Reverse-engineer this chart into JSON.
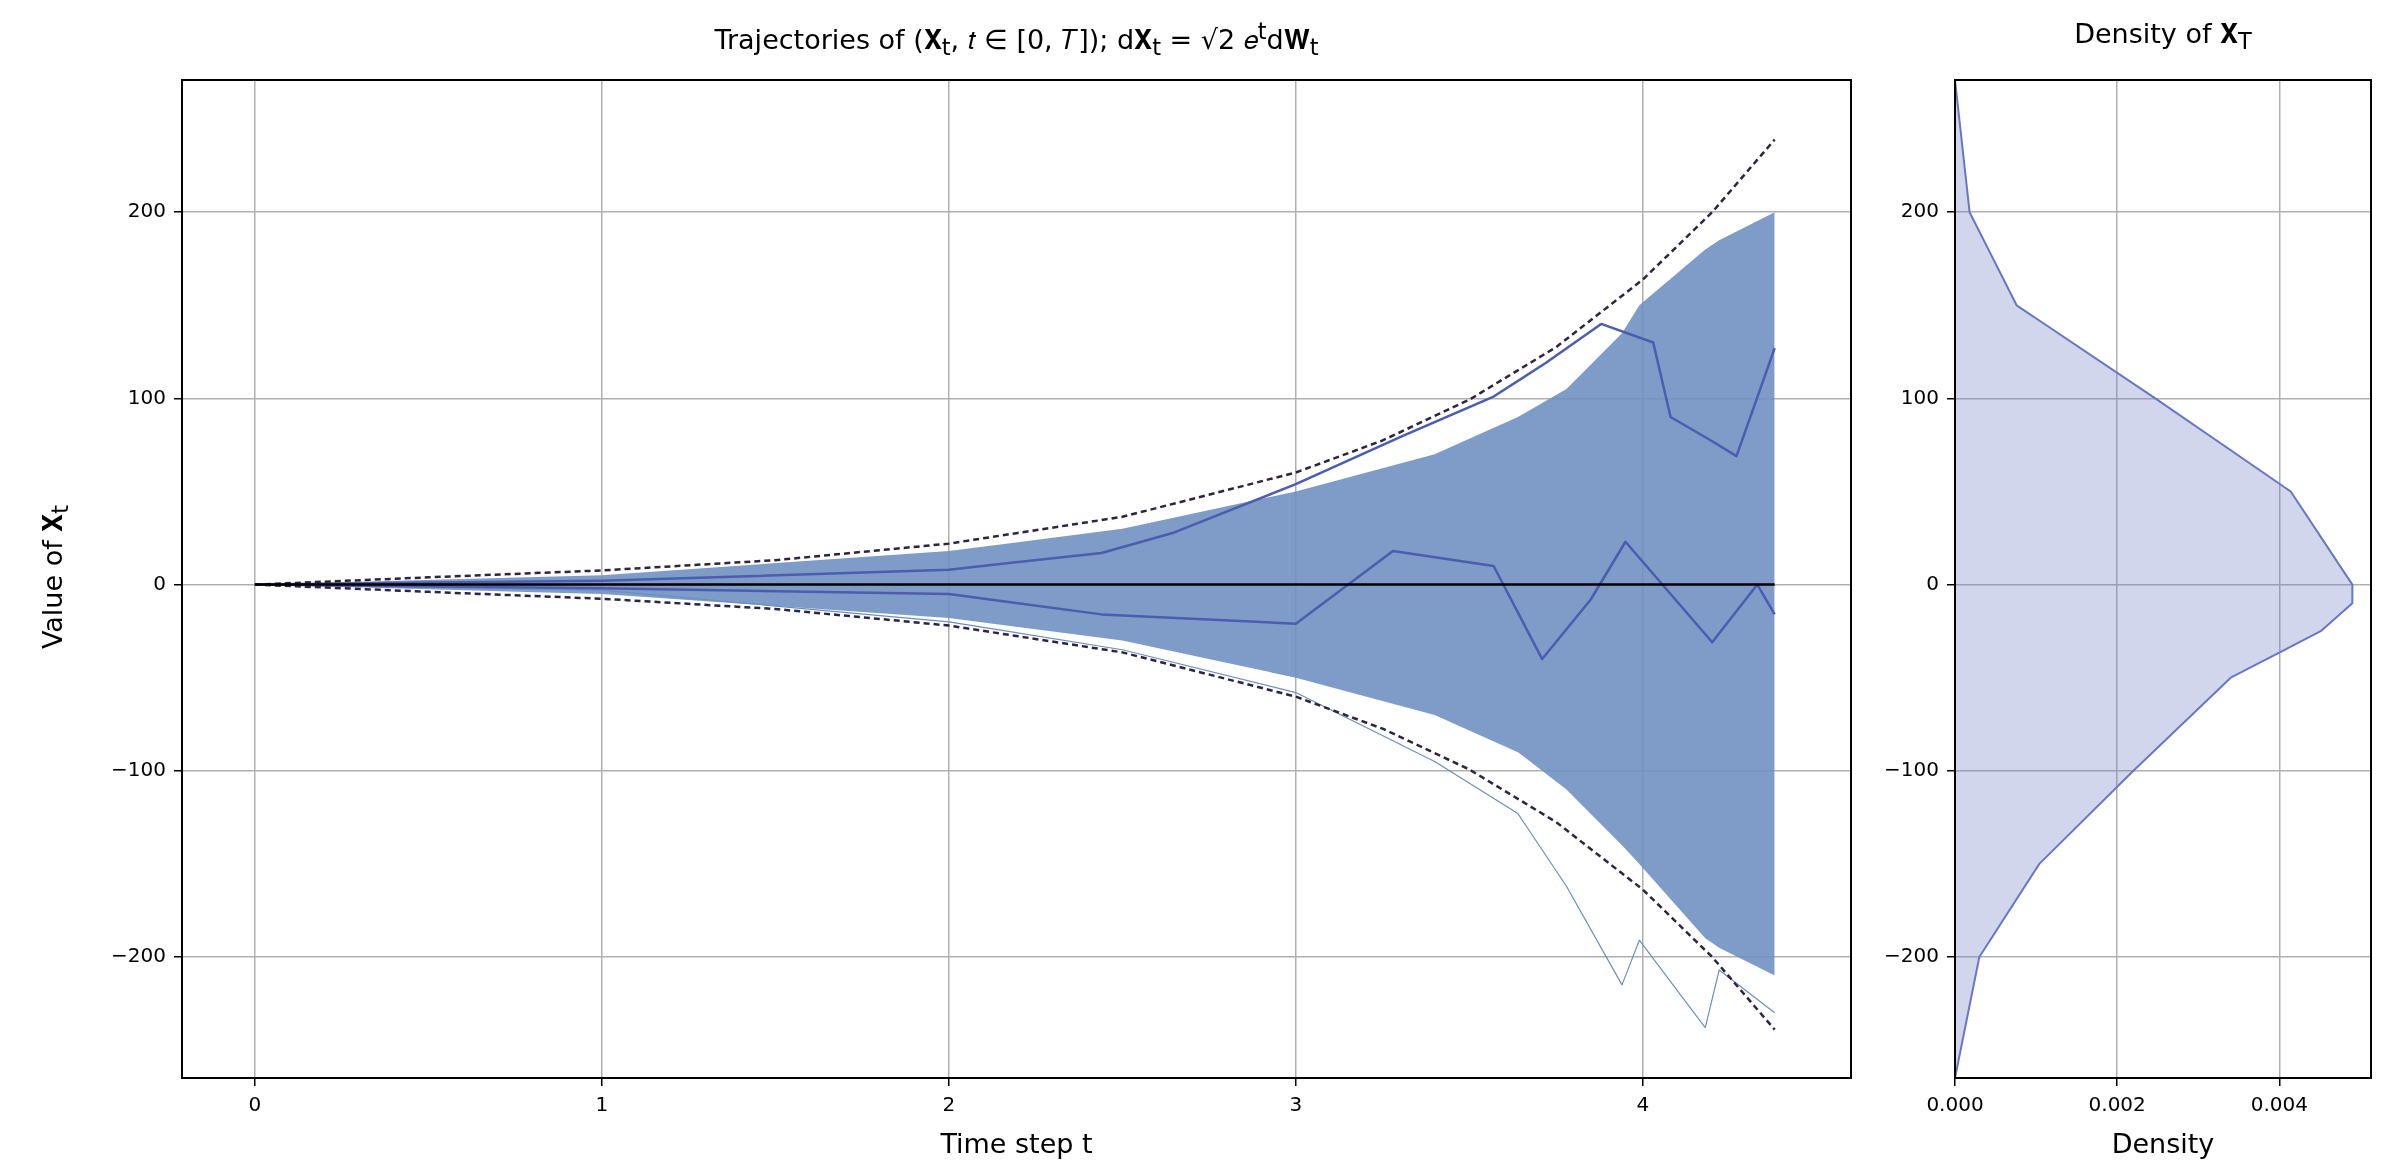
{
  "chart_data": [
    {
      "type": "line",
      "title": "Trajectories of (𝐗$_{t}$, 𝑡 ∈ [0, 𝑇]); d𝐗$_{t}$ = √2 𝑒$^{t}$d𝐖$_{t}$",
      "xlabel": "Time step t",
      "ylabel": "Value of 𝐗$_{t}$",
      "xlim": [
        -0.21,
        4.6
      ],
      "ylim": [
        -265,
        271
      ],
      "xticks": [
        0,
        1,
        2,
        3,
        4
      ],
      "yticks": [
        -200,
        -100,
        0,
        100,
        200
      ],
      "grid": true,
      "marker": "none",
      "series": [
        {
          "color": "#6c8ebf",
          "x": [
            0,
            1,
            2,
            2.5,
            3,
            3.4,
            3.64,
            3.78,
            3.94,
            3.99,
            4.18,
            4.22,
            4.38
          ],
          "values": [
            0,
            -3,
            -20,
            -35,
            -58,
            -95,
            -123,
            -162,
            -215,
            -191,
            -238,
            -207,
            -230
          ],
          "lower": [
            0,
            -5,
            -18,
            -30,
            -50,
            -70,
            -90,
            -110,
            -140,
            -150,
            -190,
            -195,
            -210
          ],
          "upper": [
            0,
            5,
            18,
            30,
            50,
            70,
            90,
            105,
            135,
            150,
            180,
            185,
            200
          ]
        },
        {
          "color": "#000000",
          "x": [
            0,
            4.38
          ],
          "values": [
            0,
            0
          ]
        },
        {
          "color": "#2e2440",
          "line_style": "dashed",
          "x": [
            0,
            0.5,
            1,
            1.5,
            2,
            2.5,
            3,
            3.25,
            3.5,
            3.75,
            4,
            4.2,
            4.38
          ],
          "values": [
            0,
            3.9,
            7.6,
            13.1,
            22,
            36.4,
            60.2,
            77.4,
            99.3,
            127.5,
            163.8,
            200,
            239
          ]
        },
        {
          "color": "#2e2440",
          "line_style": "dashed",
          "x": [
            0,
            0.5,
            1,
            1.5,
            2,
            2.5,
            3,
            3.25,
            3.5,
            3.75,
            4,
            4.2,
            4.38
          ],
          "values": [
            0,
            -3.9,
            -7.6,
            -13.1,
            -22,
            -36.4,
            -60.2,
            -77.4,
            -99.3,
            -127.5,
            -163.8,
            -200,
            -239
          ]
        },
        {
          "color": "#4a5db0",
          "x": [
            0,
            1,
            2,
            2.44,
            2.65,
            3.0,
            3.31,
            3.57,
            3.72,
            3.88,
            4.03,
            4.08,
            4.2,
            4.27,
            4.38
          ],
          "values": [
            0,
            2,
            8,
            17,
            28,
            54,
            80,
            101,
            119,
            140,
            130,
            90,
            77,
            69,
            127
          ]
        },
        {
          "color": "#4a5db0",
          "x": [
            0,
            1,
            2,
            2.44,
            3.0,
            3.28,
            3.57,
            3.71,
            3.85,
            3.95,
            4.2,
            4.33,
            4.38
          ],
          "values": [
            0,
            -2,
            -5,
            -16,
            -21,
            18,
            10,
            -40,
            -8,
            23,
            -31,
            0,
            -16
          ]
        }
      ]
    },
    {
      "type": "area",
      "orientation": "horizontal",
      "title": "Density of 𝐗$_{T}$",
      "xlabel": "Density",
      "xlim": [
        0,
        0.00513
      ],
      "ylim": [
        -265,
        271
      ],
      "xticks": [
        {
          "value": 0,
          "label": "0.000"
        },
        {
          "value": 0.002,
          "label": "0.002"
        },
        {
          "value": 0.004,
          "label": "0.004"
        }
      ],
      "yticks": [
        -200,
        -100,
        0,
        100,
        200
      ],
      "grid": true,
      "series": [
        {
          "color": "#6878c0",
          "x": [
            -265,
            -200,
            -150,
            -100,
            -50,
            -25,
            -10,
            0,
            50,
            100,
            150,
            200,
            271
          ],
          "values": [
            0,
            0.0003,
            0.00104,
            0.0022,
            0.0034,
            0.00451,
            0.0049,
            0.0049,
            0.00414,
            0.00247,
            0.00076,
            0.00018,
            0
          ]
        }
      ]
    }
  ]
}
